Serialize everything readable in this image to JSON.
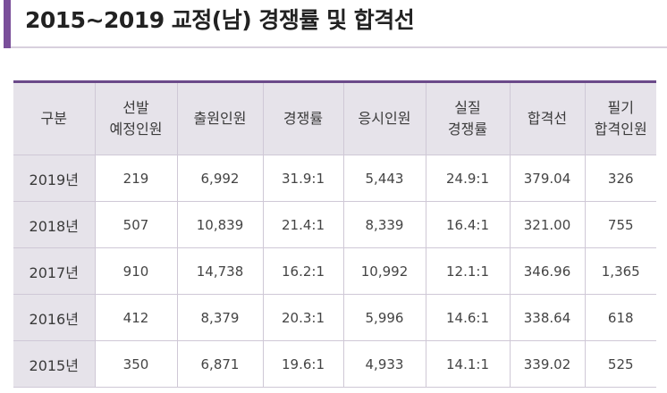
{
  "title": "2015~2019 교정(남) 경쟁률 및 합격선",
  "colors": {
    "accent": "#7a4f9a",
    "header_bg": "#e6e3ea",
    "border": "#cfc8d6"
  },
  "table": {
    "headers": [
      [
        "구분"
      ],
      [
        "선발",
        "예정인원"
      ],
      [
        "출원인원"
      ],
      [
        "경쟁률"
      ],
      [
        "응시인원"
      ],
      [
        "실질",
        "경쟁률"
      ],
      [
        "합격선"
      ],
      [
        "필기",
        "합격인원"
      ]
    ],
    "rows": [
      [
        "2019년",
        "219",
        "6,992",
        "31.9:1",
        "5,443",
        "24.9:1",
        "379.04",
        "326"
      ],
      [
        "2018년",
        "507",
        "10,839",
        "21.4:1",
        "8,339",
        "16.4:1",
        "321.00",
        "755"
      ],
      [
        "2017년",
        "910",
        "14,738",
        "16.2:1",
        "10,992",
        "12.1:1",
        "346.96",
        "1,365"
      ],
      [
        "2016년",
        "412",
        "8,379",
        "20.3:1",
        "5,996",
        "14.6:1",
        "338.64",
        "618"
      ],
      [
        "2015년",
        "350",
        "6,871",
        "19.6:1",
        "4,933",
        "14.1:1",
        "339.02",
        "525"
      ]
    ]
  }
}
